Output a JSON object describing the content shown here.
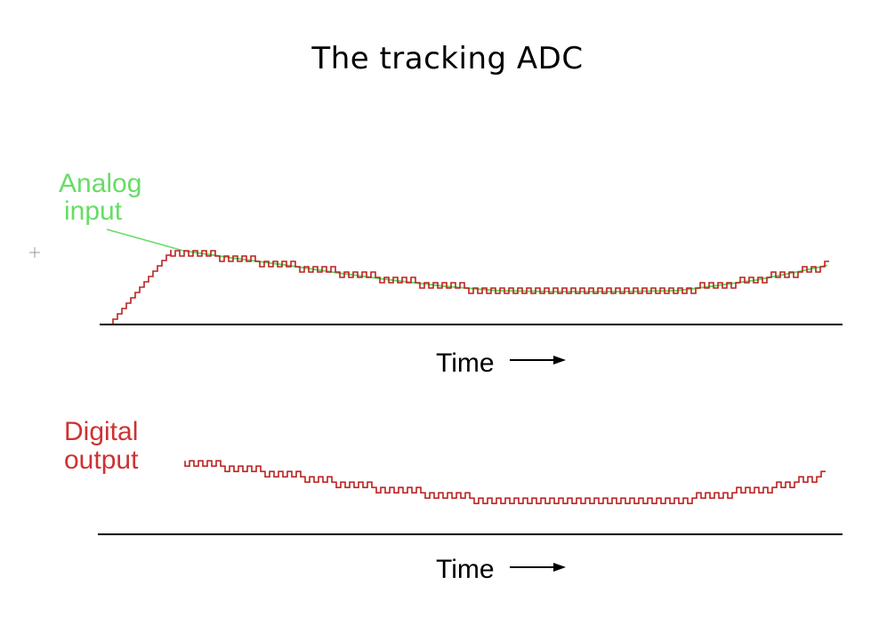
{
  "title": "The tracking ADC",
  "top_panel": {
    "label_line1": "Analog",
    "label_line2": "input",
    "axis_label": "Time",
    "analog_color": "#55dd55",
    "staircase_color": "#bb2222"
  },
  "bottom_panel": {
    "label_line1": "Digital",
    "label_line2": "output",
    "axis_label": "Time",
    "output_color": "#bb2222"
  }
}
